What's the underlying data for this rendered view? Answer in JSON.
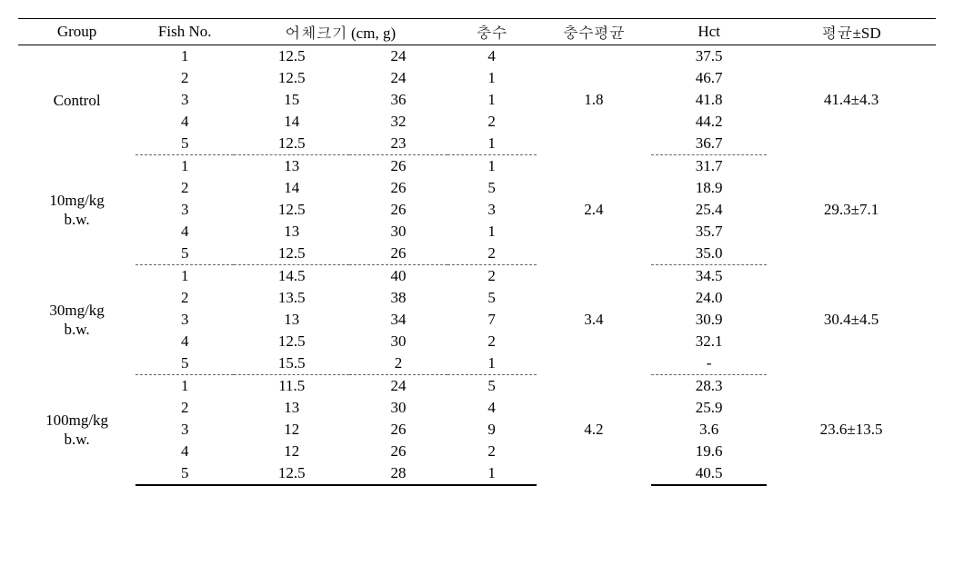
{
  "columns": {
    "group": "Group",
    "fish_no": "Fish No.",
    "size": "어체크기 (cm, g)",
    "count": "충수",
    "count_avg": "충수평균",
    "hct": "Hct",
    "mean_sd": "평균±SD"
  },
  "groups": [
    {
      "label_lines": [
        "Control"
      ],
      "count_avg": "1.8",
      "mean_sd": "41.4±4.3",
      "rows": [
        {
          "fish": "1",
          "cm": "12.5",
          "g": "24",
          "cnt": "4",
          "hct": "37.5"
        },
        {
          "fish": "2",
          "cm": "12.5",
          "g": "24",
          "cnt": "1",
          "hct": "46.7"
        },
        {
          "fish": "3",
          "cm": "15",
          "g": "36",
          "cnt": "1",
          "hct": "41.8"
        },
        {
          "fish": "4",
          "cm": "14",
          "g": "32",
          "cnt": "2",
          "hct": "44.2"
        },
        {
          "fish": "5",
          "cm": "12.5",
          "g": "23",
          "cnt": "1",
          "hct": "36.7"
        }
      ]
    },
    {
      "label_lines": [
        "10mg/kg",
        "b.w."
      ],
      "count_avg": "2.4",
      "mean_sd": "29.3±7.1",
      "rows": [
        {
          "fish": "1",
          "cm": "13",
          "g": "26",
          "cnt": "1",
          "hct": "31.7"
        },
        {
          "fish": "2",
          "cm": "14",
          "g": "26",
          "cnt": "5",
          "hct": "18.9"
        },
        {
          "fish": "3",
          "cm": "12.5",
          "g": "26",
          "cnt": "3",
          "hct": "25.4"
        },
        {
          "fish": "4",
          "cm": "13",
          "g": "30",
          "cnt": "1",
          "hct": "35.7"
        },
        {
          "fish": "5",
          "cm": "12.5",
          "g": "26",
          "cnt": "2",
          "hct": "35.0"
        }
      ]
    },
    {
      "label_lines": [
        "30mg/kg",
        "b.w."
      ],
      "count_avg": "3.4",
      "mean_sd": "30.4±4.5",
      "rows": [
        {
          "fish": "1",
          "cm": "14.5",
          "g": "40",
          "cnt": "2",
          "hct": "34.5"
        },
        {
          "fish": "2",
          "cm": "13.5",
          "g": "38",
          "cnt": "5",
          "hct": "24.0"
        },
        {
          "fish": "3",
          "cm": "13",
          "g": "34",
          "cnt": "7",
          "hct": "30.9"
        },
        {
          "fish": "4",
          "cm": "12.5",
          "g": "30",
          "cnt": "2",
          "hct": "32.1"
        },
        {
          "fish": "5",
          "cm": "15.5",
          "g": "2",
          "cnt": "1",
          "hct": "-"
        }
      ]
    },
    {
      "label_lines": [
        "100mg/kg",
        "b.w."
      ],
      "count_avg": "4.2",
      "mean_sd": "23.6±13.5",
      "rows": [
        {
          "fish": "1",
          "cm": "11.5",
          "g": "24",
          "cnt": "5",
          "hct": "28.3"
        },
        {
          "fish": "2",
          "cm": "13",
          "g": "30",
          "cnt": "4",
          "hct": "25.9"
        },
        {
          "fish": "3",
          "cm": "12",
          "g": "26",
          "cnt": "9",
          "hct": "3.6"
        },
        {
          "fish": "4",
          "cm": "12",
          "g": "26",
          "cnt": "2",
          "hct": "19.6"
        },
        {
          "fish": "5",
          "cm": "12.5",
          "g": "28",
          "cnt": "1",
          "hct": "40.5"
        }
      ]
    }
  ]
}
